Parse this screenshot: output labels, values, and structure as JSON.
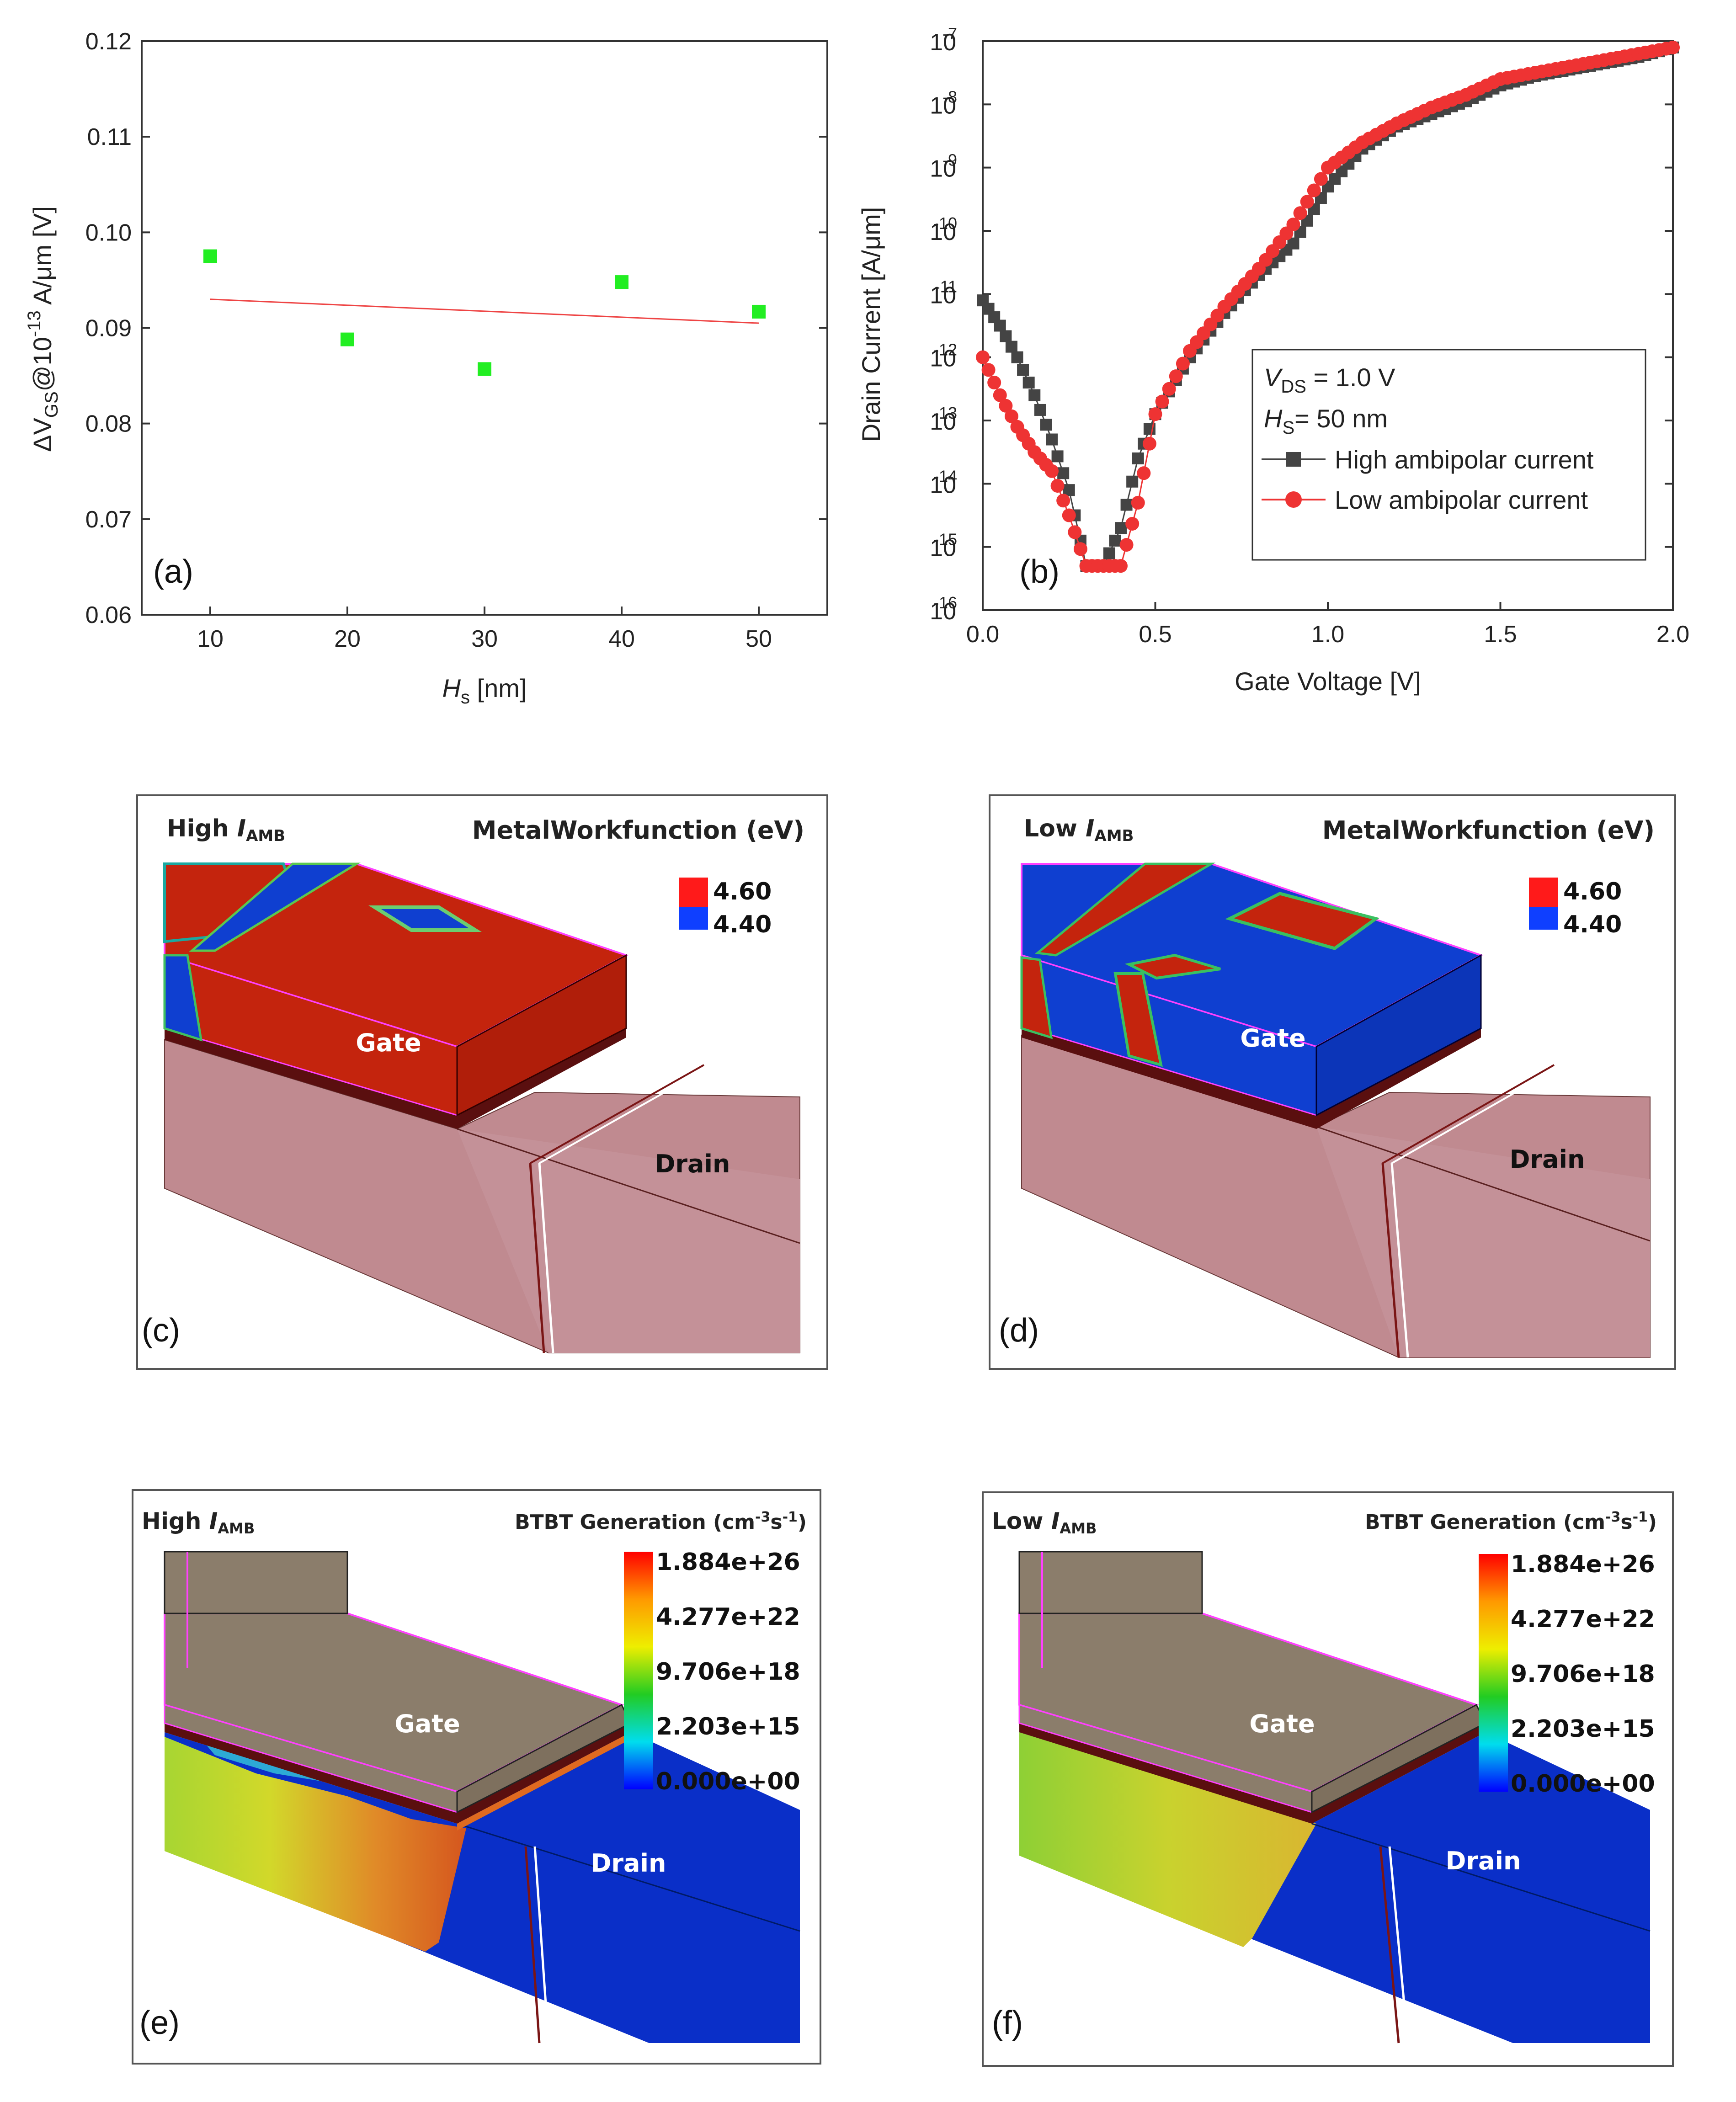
{
  "chart_data": [
    {
      "id": "a",
      "type": "scatter",
      "panel_label": "(a)",
      "xlabel": {
        "italic": "H",
        "sub": "s",
        "rest": " [nm]"
      },
      "ylabel": {
        "pre": "ΔV",
        "sub": "GS",
        "mid": "@10",
        "sup": "-13",
        "rest": " A/μm [V]"
      },
      "xlim": [
        5,
        55
      ],
      "ylim": [
        0.06,
        0.12
      ],
      "xticks": [
        10,
        20,
        30,
        40,
        50
      ],
      "xtick_labels": [
        "10",
        "20",
        "30",
        "40",
        "50"
      ],
      "yticks": [
        0.06,
        0.07,
        0.08,
        0.09,
        0.1,
        0.11,
        0.12
      ],
      "ytick_labels": [
        "0.06",
        "0.07",
        "0.08",
        "0.09",
        "0.10",
        "0.11",
        "0.12"
      ],
      "series": [
        {
          "name": "data",
          "color": "#22ee22",
          "x": [
            10,
            20,
            30,
            40,
            50
          ],
          "y": [
            0.0975,
            0.0888,
            0.0857,
            0.0948,
            0.0917
          ]
        },
        {
          "name": "linear fit",
          "color": "#ee4444",
          "x": [
            10,
            50
          ],
          "y": [
            0.093,
            0.0905
          ]
        }
      ]
    },
    {
      "id": "b",
      "type": "line",
      "panel_label": "(b)",
      "xlabel": "Gate Voltage [V]",
      "ylabel": "Drain Current [A/μm]",
      "xlim": [
        0,
        2.0
      ],
      "ylim_log10": [
        -16,
        -7
      ],
      "xticks": [
        0,
        0.5,
        1.0,
        1.5,
        2.0
      ],
      "xtick_labels": [
        "0.0",
        "0.5",
        "1.0",
        "1.5",
        "2.0"
      ],
      "ytick_exponents": [
        -16,
        -15,
        -14,
        -13,
        -12,
        -11,
        -10,
        -9,
        -8,
        -7
      ],
      "ytick_base": "10",
      "ytick_sups": [
        "-16",
        "-15",
        "-14",
        "-13",
        "-12",
        "-11",
        "-10",
        "-9",
        "-8",
        "-7"
      ],
      "legend": {
        "line1": {
          "italic": "V",
          "sub": "DS",
          "rest": " = 1.0 V"
        },
        "line2": {
          "italic": "H",
          "sub": "S",
          "rest": "= 50 nm"
        }
      },
      "series": [
        {
          "name": "High ambipolar current",
          "color": "#444444",
          "marker": "square",
          "x": [
            0.0,
            0.05,
            0.1,
            0.15,
            0.2,
            0.25,
            0.3,
            0.35,
            0.4,
            0.45,
            0.5,
            0.6,
            0.7,
            0.8,
            0.9,
            1.0,
            1.1,
            1.2,
            1.3,
            1.4,
            1.5,
            1.6,
            1.7,
            1.8,
            1.9,
            2.0
          ],
          "log10y": [
            -11.1,
            -11.5,
            -12.0,
            -12.6,
            -13.3,
            -14.1,
            -15.3,
            -15.3,
            -14.7,
            -13.6,
            -12.9,
            -12.0,
            -11.3,
            -10.7,
            -10.2,
            -9.3,
            -8.7,
            -8.35,
            -8.15,
            -7.95,
            -7.7,
            -7.55,
            -7.45,
            -7.35,
            -7.25,
            -7.1
          ]
        },
        {
          "name": "Low ambipolar current",
          "color": "#ee3333",
          "marker": "circle",
          "x": [
            0.0,
            0.05,
            0.1,
            0.15,
            0.2,
            0.25,
            0.3,
            0.35,
            0.4,
            0.45,
            0.5,
            0.6,
            0.7,
            0.8,
            0.9,
            1.0,
            1.1,
            1.2,
            1.3,
            1.4,
            1.5,
            1.6,
            1.7,
            1.8,
            1.9,
            2.0
          ],
          "log10y": [
            -12.0,
            -12.6,
            -13.1,
            -13.5,
            -13.8,
            -14.5,
            -15.3,
            -15.3,
            -15.3,
            -14.3,
            -12.9,
            -11.9,
            -11.2,
            -10.6,
            -9.9,
            -9.0,
            -8.6,
            -8.3,
            -8.05,
            -7.85,
            -7.6,
            -7.5,
            -7.4,
            -7.3,
            -7.2,
            -7.1
          ]
        }
      ]
    }
  ],
  "panels": {
    "c": {
      "label": "(c)",
      "title_pre": "High ",
      "title_italic": "I",
      "title_sub": "AMB",
      "legend_title": "MetalWorkfunction (eV)",
      "legend_values": [
        "4.60",
        "4.40"
      ],
      "gate": "Gate",
      "drain": "Drain"
    },
    "d": {
      "label": "(d)",
      "title_pre": "Low ",
      "title_italic": "I",
      "title_sub": "AMB",
      "legend_title": "MetalWorkfunction (eV)",
      "legend_values": [
        "4.60",
        "4.40"
      ],
      "gate": "Gate",
      "drain": "Drain"
    },
    "e": {
      "label": "(e)",
      "title_pre": "High ",
      "title_italic": "I",
      "title_sub": "AMB",
      "legend_title_pre": "BTBT Generation (cm",
      "legend_sup1": "-3",
      "legend_mid": "s",
      "legend_sup2": "-1",
      "legend_post": ")",
      "legend_values": [
        "1.884e+26",
        "4.277e+22",
        "9.706e+18",
        "2.203e+15",
        "0.000e+00"
      ],
      "gate": "Gate",
      "drain": "Drain"
    },
    "f": {
      "label": "(f)",
      "title_pre": "Low ",
      "title_italic": "I",
      "title_sub": "AMB",
      "legend_title_pre": "BTBT Generation (cm",
      "legend_sup1": "-3",
      "legend_mid": "s",
      "legend_sup2": "-1",
      "legend_post": ")",
      "legend_values": [
        "1.884e+26",
        "4.277e+22",
        "9.706e+18",
        "2.203e+15",
        "0.000e+00"
      ],
      "gate": "Gate",
      "drain": "Drain"
    }
  },
  "colors": {
    "red": "#cc1a10",
    "blue": "#0f3fd0",
    "substrate": "#c08a90",
    "gate_gray": "#8b7d6b",
    "oxide": "#5a0f0f",
    "edge": "#ff40ff"
  }
}
